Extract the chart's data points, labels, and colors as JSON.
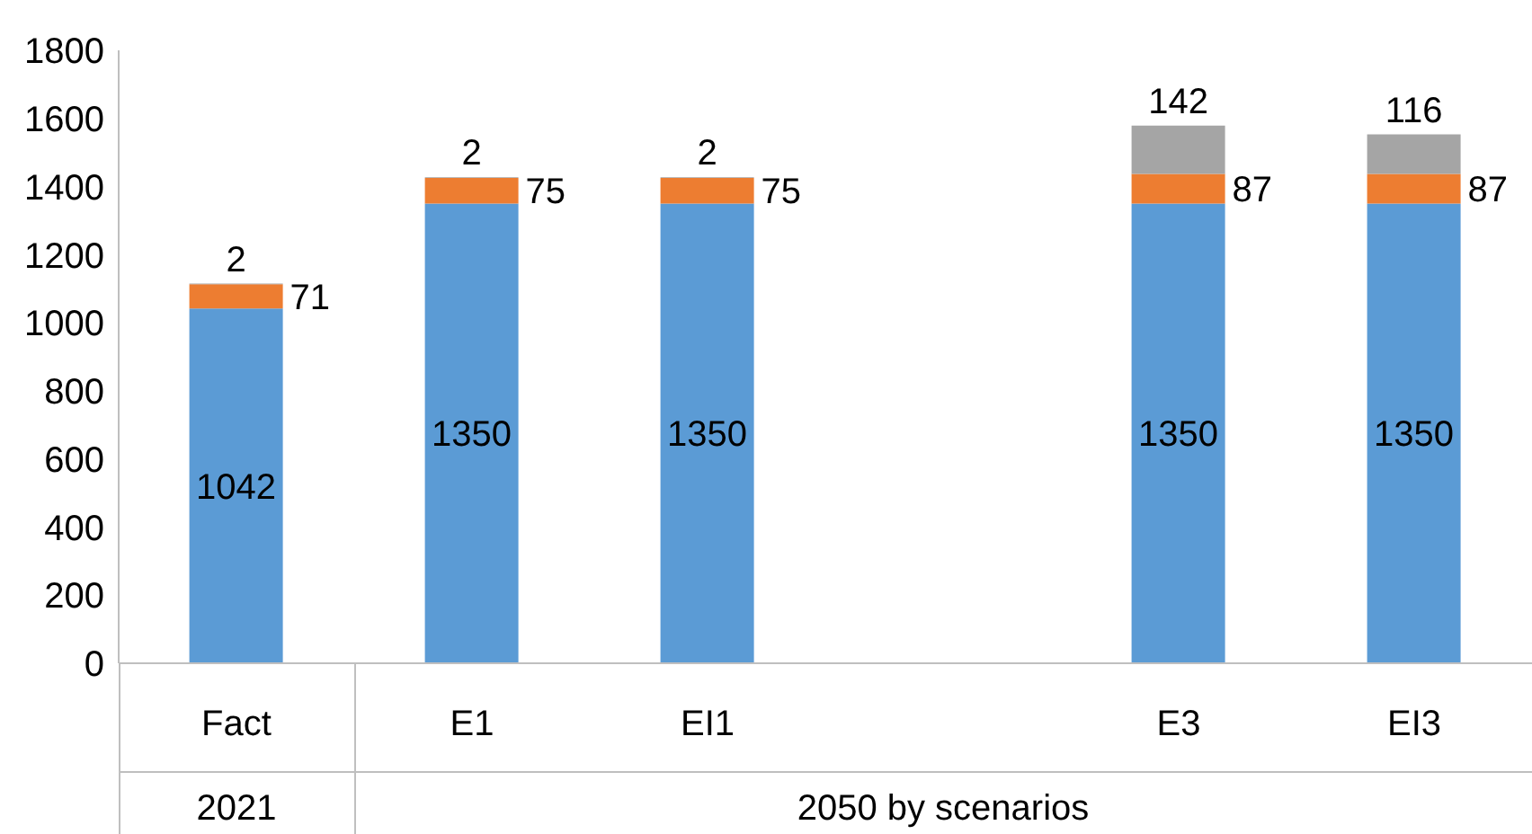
{
  "chart_data": {
    "type": "bar",
    "stacked": true,
    "categories": [
      "Fact",
      "E1",
      "EI1",
      null,
      "E3",
      "EI3"
    ],
    "series": [
      {
        "color": "#5b9bd5",
        "values": [
          1042,
          1350,
          1350,
          null,
          1350,
          1350
        ]
      },
      {
        "color": "#ed7d31",
        "values": [
          71,
          75,
          75,
          null,
          87,
          87
        ]
      },
      {
        "color": "#a5a5a5",
        "values": [
          2,
          2,
          2,
          null,
          142,
          116
        ]
      }
    ],
    "data_labels": true,
    "ylim": [
      0,
      1800
    ],
    "yticks": [
      0,
      200,
      400,
      600,
      800,
      1000,
      1200,
      1400,
      1600,
      1800
    ],
    "annotations": [
      "2021",
      "2050 by scenarios"
    ]
  }
}
